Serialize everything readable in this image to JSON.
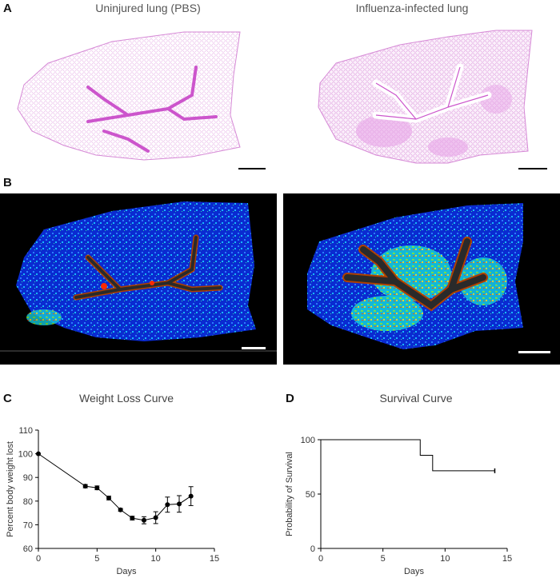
{
  "panels": {
    "a": {
      "letter": "A",
      "left_title": "Uninjured lung (PBS)",
      "right_title": "Influenza-infected lung"
    },
    "b": {
      "letter": "B"
    },
    "c": {
      "letter": "C",
      "title": "Weight Loss Curve"
    },
    "d": {
      "letter": "D",
      "title": "Survival Curve"
    }
  },
  "colors": {
    "he_stain": "#d670d6",
    "heatmap_bg": "#000000",
    "heatmap_low": "#0a2bd0",
    "heatmap_mid": "#1fd3a0",
    "heatmap_high": "#ff2a00",
    "airway": "#2a2a2a",
    "scale_bar_light": "#ffffff",
    "scale_bar_dark": "#000000"
  },
  "chart_data": [
    {
      "type": "line",
      "title": "Weight Loss Curve",
      "xlabel": "Days",
      "ylabel": "Percent body weight lost",
      "xlim": [
        0,
        15
      ],
      "ylim": [
        60,
        110
      ],
      "xticks": [
        0,
        5,
        10,
        15
      ],
      "yticks": [
        60,
        70,
        80,
        90,
        100,
        110
      ],
      "grid": false,
      "series": [
        {
          "x": [
            0,
            4,
            5,
            6,
            7,
            8,
            9,
            10,
            11,
            12,
            13
          ],
          "y": [
            100,
            86.3,
            85.6,
            81.3,
            76.3,
            72.8,
            71.9,
            73,
            78.5,
            78.8,
            82.1
          ],
          "error": [
            0.3,
            0.7,
            0.8,
            0.8,
            0.6,
            0.8,
            1.5,
            2.5,
            3.2,
            3.5,
            4.0
          ]
        }
      ]
    },
    {
      "type": "line",
      "title": "Survival Curve",
      "xlabel": "Days",
      "ylabel": "Probability of Survival",
      "xlim": [
        0,
        15
      ],
      "ylim": [
        0,
        100
      ],
      "xticks": [
        0,
        5,
        10,
        15
      ],
      "yticks": [
        0,
        50,
        100
      ],
      "grid": false,
      "series": [
        {
          "step": true,
          "x": [
            0,
            8,
            8,
            9,
            9,
            14
          ],
          "y": [
            100,
            100,
            85.7,
            85.7,
            71.4,
            71.4
          ]
        }
      ]
    }
  ]
}
